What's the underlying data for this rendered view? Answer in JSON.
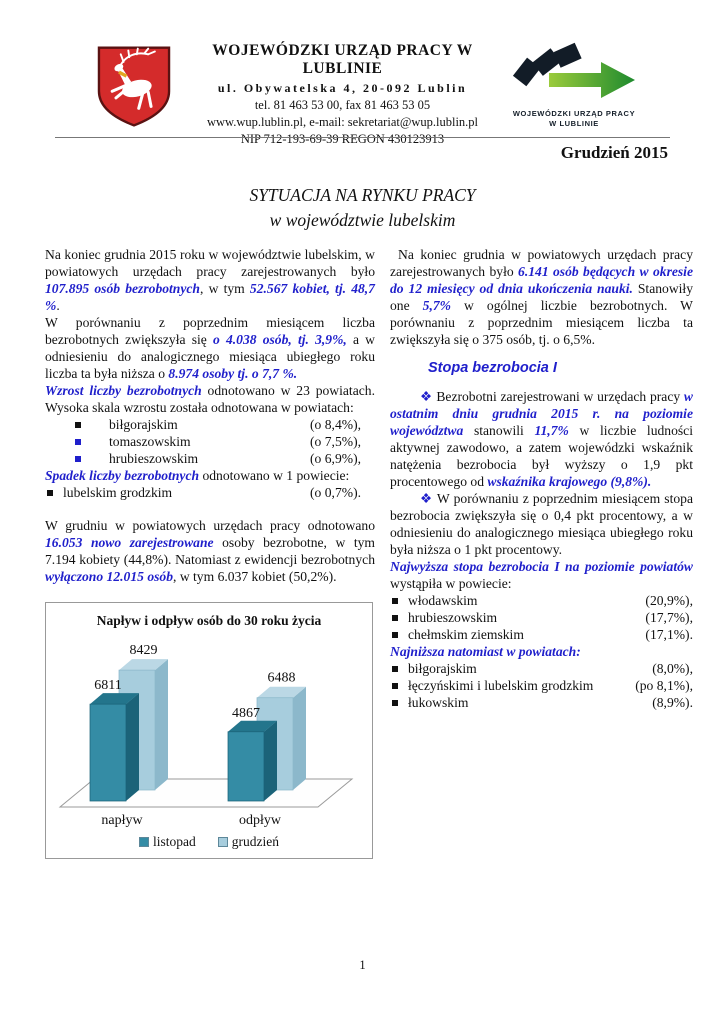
{
  "header": {
    "org_name": "WOJEWÓDZKI URZĄD PRACY W LUBLINIE",
    "address": "ul. Obywatelska 4, 20-092 Lublin",
    "phone": "tel. 81 463 53 00, fax  81 463 53 05",
    "web_email": "www.wup.lublin.pl, e-mail: sekretariat@wup.lublin.pl",
    "nip_regon": "NIP 712-193-69-39  REGON 430123913",
    "logo_caption_line1": "WOJEWÓDZKI URZĄD PRACY",
    "logo_caption_line2": "W LUBLINIE",
    "date": "Grudzień 2015"
  },
  "title": {
    "line1": "SYTUACJA NA RYNKU PRACY",
    "line2": "w województwie lubelskim"
  },
  "left_column": {
    "p1": {
      "runs": [
        {
          "t": "Na koniec grudnia 2015 roku w województwie lubelskim, w powiatowych urzędach pracy zarejestrowanych było "
        },
        {
          "t": "107.895 osób bezrobotnych",
          "em": true
        },
        {
          "t": ", w tym "
        },
        {
          "t": "52.567 kobiet, tj. 48,7 %",
          "em": true
        },
        {
          "t": "."
        }
      ]
    },
    "p2": {
      "runs": [
        {
          "t": "W porównaniu z poprzednim miesiącem liczba bezrobotnych zwiększyła się "
        },
        {
          "t": "o 4.038 osób, tj. 3,9%,",
          "em": true
        },
        {
          "t": " a w odniesieniu do analogicznego miesiąca ubiegłego roku liczba ta była niższa o "
        },
        {
          "t": "8.974 osoby tj. o 7,7 %.",
          "em": true
        }
      ]
    },
    "p3": {
      "runs": [
        {
          "t": "Wzrost liczby bezrobotnych",
          "em": true
        },
        {
          "t": " odnotowano w 23 powiatach. Wysoka skala wzrostu została odnotowana w powiatach:"
        }
      ]
    },
    "list1": {
      "items": [
        {
          "name": "biłgorajskim",
          "value": "(o 8,4%),",
          "bullet": "#111111"
        },
        {
          "name": "tomaszowskim",
          "value": "(o 7,5%),",
          "bullet": "#1f1fcb"
        },
        {
          "name": "hrubieszowskim",
          "value": "(o 6,9%),",
          "bullet": "#1f1fcb"
        }
      ]
    },
    "p4": {
      "runs": [
        {
          "t": "Spadek liczby bezrobotnych",
          "em": true
        },
        {
          "t": " odnotowano w 1 powiecie:"
        }
      ]
    },
    "list2": {
      "items": [
        {
          "name": "lubelskim grodzkim",
          "value": "(o 0,7%).",
          "bullet": "#111111"
        }
      ]
    },
    "p5": {
      "runs": [
        {
          "t": " W grudniu w powiatowych urzędach pracy odnotowano "
        },
        {
          "t": "16.053  nowo zarejestrowane",
          "em": true
        },
        {
          "t": " osoby bezrobotne, w tym 7.194 kobiety (44,8%). Natomiast z ewidencji bezrobotnych "
        },
        {
          "t": "wyłączono 12.015 osób",
          "em": true
        },
        {
          "t": ", w tym 6.037 kobiet (50,2%)."
        }
      ]
    }
  },
  "right_column": {
    "p1": {
      "runs": [
        {
          "t": "Na koniec grudnia  w powiatowych urzędach pracy zarejestrowanych było "
        },
        {
          "t": "6.141 osób będących w okresie do 12 miesięcy od dnia ukończenia nauki.",
          "em": true
        },
        {
          "t": " Stanowiły one "
        },
        {
          "t": "5,7%",
          "em": true
        },
        {
          "t": " w ogólnej liczbie bezrobotnych. W porównaniu z poprzednim miesiącem liczba ta zwiększyła się o 375 osób, tj. o 6,5%."
        }
      ]
    },
    "heading": "Stopa bezrobocia I",
    "p2": {
      "runs": [
        {
          "t": "❖ ",
          "diamond": true
        },
        {
          "t": "Bezrobotni zarejestrowani w urzędach pracy "
        },
        {
          "t": "w ostatnim dniu grudnia 2015 r. na poziomie województwa",
          "em": true
        },
        {
          "t": " stanowili "
        },
        {
          "t": "11,7%",
          "em": true
        },
        {
          "t": " w liczbie ludności aktywnej zawodowo, a zatem wojewódzki wskaźnik natężenia bezrobocia był wyższy o 1,9 pkt procentowego od "
        },
        {
          "t": "wskaźnika krajowego (9,8%).",
          "em": true
        }
      ]
    },
    "p3": {
      "runs": [
        {
          "t": "❖ ",
          "diamond": true
        },
        {
          "t": "W porównaniu z poprzednim miesiącem stopa bezrobocia zwiększyła się o 0,4 pkt procentowy,  a w odniesieniu do analogicznego miesiąca ubiegłego roku była niższa o 1  pkt procentowy."
        }
      ]
    },
    "p4": {
      "runs": [
        {
          "t": "Najwyższa stopa bezrobocia I na poziomie powiatów",
          "em": true
        },
        {
          "t": " wystąpiła w powiecie:"
        }
      ]
    },
    "list1": {
      "items": [
        {
          "name": "włodawskim",
          "value": "(20,9%),",
          "bullet": "#111111"
        },
        {
          "name": "hrubieszowskim",
          "value": "(17,7%),",
          "bullet": "#111111"
        },
        {
          "name": "chełmskim ziemskim",
          "value": "(17,1%).",
          "bullet": "#111111"
        }
      ]
    },
    "p5": {
      "runs": [
        {
          "t": "Najniższa natomiast w powiatach:",
          "em": true
        }
      ]
    },
    "list2": {
      "items": [
        {
          "name": "biłgorajskim",
          "value": "(8,0%),",
          "bullet": "#111111"
        },
        {
          "name": "łęczyńskimi  i lubelskim grodzkim",
          "value": "(po 8,1%),",
          "bullet": "#111111"
        },
        {
          "name": "łukowskim",
          "value": "(8,9%).",
          "bullet": "#111111"
        }
      ]
    }
  },
  "chart_data": {
    "type": "bar",
    "style": "3d-grouped",
    "title": "Napływ i odpływ osób do 30 roku życia",
    "categories": [
      "napływ",
      "odpływ"
    ],
    "series": [
      {
        "name": "listopad",
        "values": [
          6811,
          4867
        ],
        "color": "#348ca5",
        "top": "#23758c",
        "side": "#1b6379"
      },
      {
        "name": "grudzień",
        "values": [
          8429,
          6488
        ],
        "color": "#a7cddd",
        "top": "#bbd8e5",
        "side": "#8cb8cb"
      }
    ],
    "ylim": [
      0,
      9000
    ],
    "legend_position": "bottom",
    "grid": false
  },
  "colors": {
    "accent_blue": "#1f1fcb",
    "shield_red": "#d42b2b",
    "logo_dark": "#121c27",
    "logo_green_light": "#9bcb3c",
    "logo_green_dark": "#1e8a2e"
  },
  "page": {
    "number": "1"
  }
}
